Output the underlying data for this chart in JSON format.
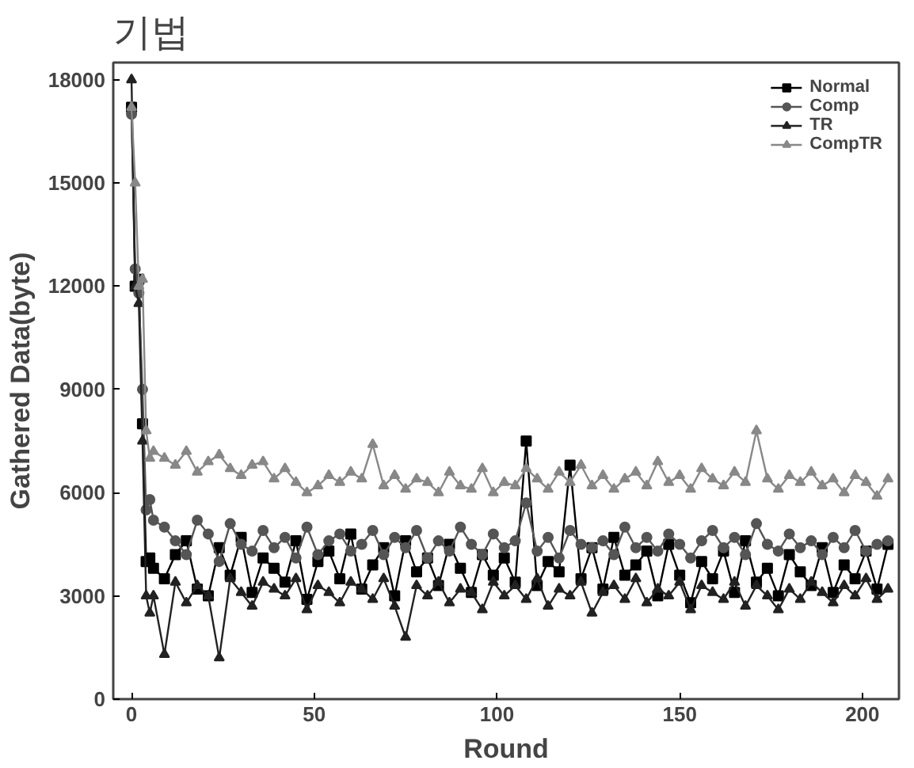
{
  "chart_data": {
    "type": "line",
    "title": "기법",
    "xlabel": "Round",
    "ylabel": "Gathered Data(byte)",
    "x": [
      0,
      1,
      2,
      3,
      4,
      5,
      6,
      9,
      12,
      15,
      18,
      21,
      24,
      27,
      30,
      33,
      36,
      39,
      42,
      45,
      48,
      51,
      54,
      57,
      60,
      63,
      66,
      69,
      72,
      75,
      78,
      81,
      84,
      87,
      90,
      93,
      96,
      99,
      102,
      105,
      108,
      111,
      114,
      117,
      120,
      123,
      126,
      129,
      132,
      135,
      138,
      141,
      144,
      147,
      150,
      153,
      156,
      159,
      162,
      165,
      168,
      171,
      174,
      177,
      180,
      183,
      186,
      189,
      192,
      195,
      198,
      201,
      204,
      207
    ],
    "xlim": [
      -5,
      210
    ],
    "xticks": [
      0,
      50,
      100,
      150,
      200
    ],
    "ylim": [
      0,
      18500
    ],
    "yticks": [
      0,
      3000,
      6000,
      9000,
      12000,
      15000,
      18000
    ],
    "grid": false,
    "legend": "top right",
    "series": [
      {
        "name": "Normal",
        "color": "#000000",
        "marker": "square",
        "values": [
          17200,
          12000,
          12200,
          8000,
          4000,
          4100,
          3800,
          3500,
          4200,
          4600,
          3200,
          3000,
          4400,
          3600,
          4700,
          3100,
          4100,
          3800,
          3400,
          4600,
          2900,
          4000,
          4300,
          3500,
          4800,
          3200,
          3900,
          4400,
          3000,
          4600,
          3700,
          4100,
          3300,
          4500,
          3800,
          3100,
          4200,
          3600,
          4100,
          3400,
          7500,
          3300,
          4000,
          3700,
          6800,
          3500,
          4400,
          3200,
          4700,
          3600,
          3900,
          4300,
          3000,
          4500,
          3600,
          2800,
          4000,
          3500,
          4300,
          3100,
          4600,
          3400,
          3800,
          3000,
          4200,
          3700,
          3300,
          4400,
          3100,
          3900,
          3500,
          4300,
          3200,
          4500
        ]
      },
      {
        "name": "Comp",
        "color": "#555555",
        "marker": "circle",
        "values": [
          17000,
          12500,
          11800,
          9000,
          5500,
          5800,
          5200,
          5000,
          4600,
          4200,
          5200,
          4800,
          4000,
          5100,
          4500,
          4300,
          4900,
          4400,
          4700,
          4100,
          5000,
          4200,
          4600,
          4800,
          4300,
          4500,
          4900,
          4200,
          4700,
          4400,
          4900,
          4100,
          4600,
          4300,
          5000,
          4500,
          4200,
          4800,
          4400,
          4600,
          5700,
          4300,
          4700,
          4100,
          4900,
          4500,
          4400,
          4600,
          4200,
          5000,
          4400,
          4700,
          4300,
          4800,
          4500,
          4100,
          4600,
          4900,
          4400,
          4700,
          4200,
          5100,
          4500,
          4300,
          4800,
          4400,
          4600,
          4200,
          4700,
          4400,
          4900,
          4300,
          4500,
          4600
        ]
      },
      {
        "name": "TR",
        "color": "#222222",
        "marker": "triangle",
        "values": [
          18000,
          12000,
          11500,
          7500,
          3000,
          2500,
          3000,
          1300,
          3400,
          2800,
          3300,
          3000,
          1200,
          3500,
          3100,
          2700,
          3400,
          3200,
          3000,
          3500,
          2600,
          3300,
          3100,
          2800,
          3400,
          3200,
          2900,
          3500,
          2700,
          1800,
          3300,
          3000,
          3400,
          2800,
          3200,
          3100,
          2600,
          3400,
          3000,
          3300,
          2900,
          3500,
          2700,
          3200,
          3000,
          3400,
          2500,
          3100,
          3300,
          2900,
          3500,
          2800,
          3200,
          3000,
          3400,
          2600,
          3300,
          3100,
          2900,
          3400,
          2700,
          3300,
          3000,
          2600,
          3200,
          2900,
          3400,
          3100,
          2800,
          3300,
          3000,
          3500,
          2900,
          3200
        ]
      },
      {
        "name": "CompTR",
        "color": "#888888",
        "marker": "triangle",
        "values": [
          17200,
          15000,
          12000,
          12200,
          7800,
          7000,
          7200,
          7000,
          6800,
          7200,
          6600,
          6900,
          7100,
          6700,
          6500,
          6800,
          6900,
          6400,
          6700,
          6300,
          6000,
          6200,
          6500,
          6300,
          6600,
          6400,
          7400,
          6200,
          6500,
          6100,
          6400,
          6300,
          6000,
          6600,
          6200,
          6100,
          6700,
          6000,
          6300,
          6200,
          6700,
          6400,
          6100,
          6600,
          6300,
          6800,
          6200,
          6500,
          6100,
          6400,
          6600,
          6200,
          6900,
          6300,
          6500,
          6100,
          6700,
          6400,
          6200,
          6600,
          6300,
          7800,
          6400,
          6100,
          6500,
          6300,
          6600,
          6200,
          6400,
          6000,
          6500,
          6300,
          5900,
          6400
        ]
      }
    ]
  }
}
